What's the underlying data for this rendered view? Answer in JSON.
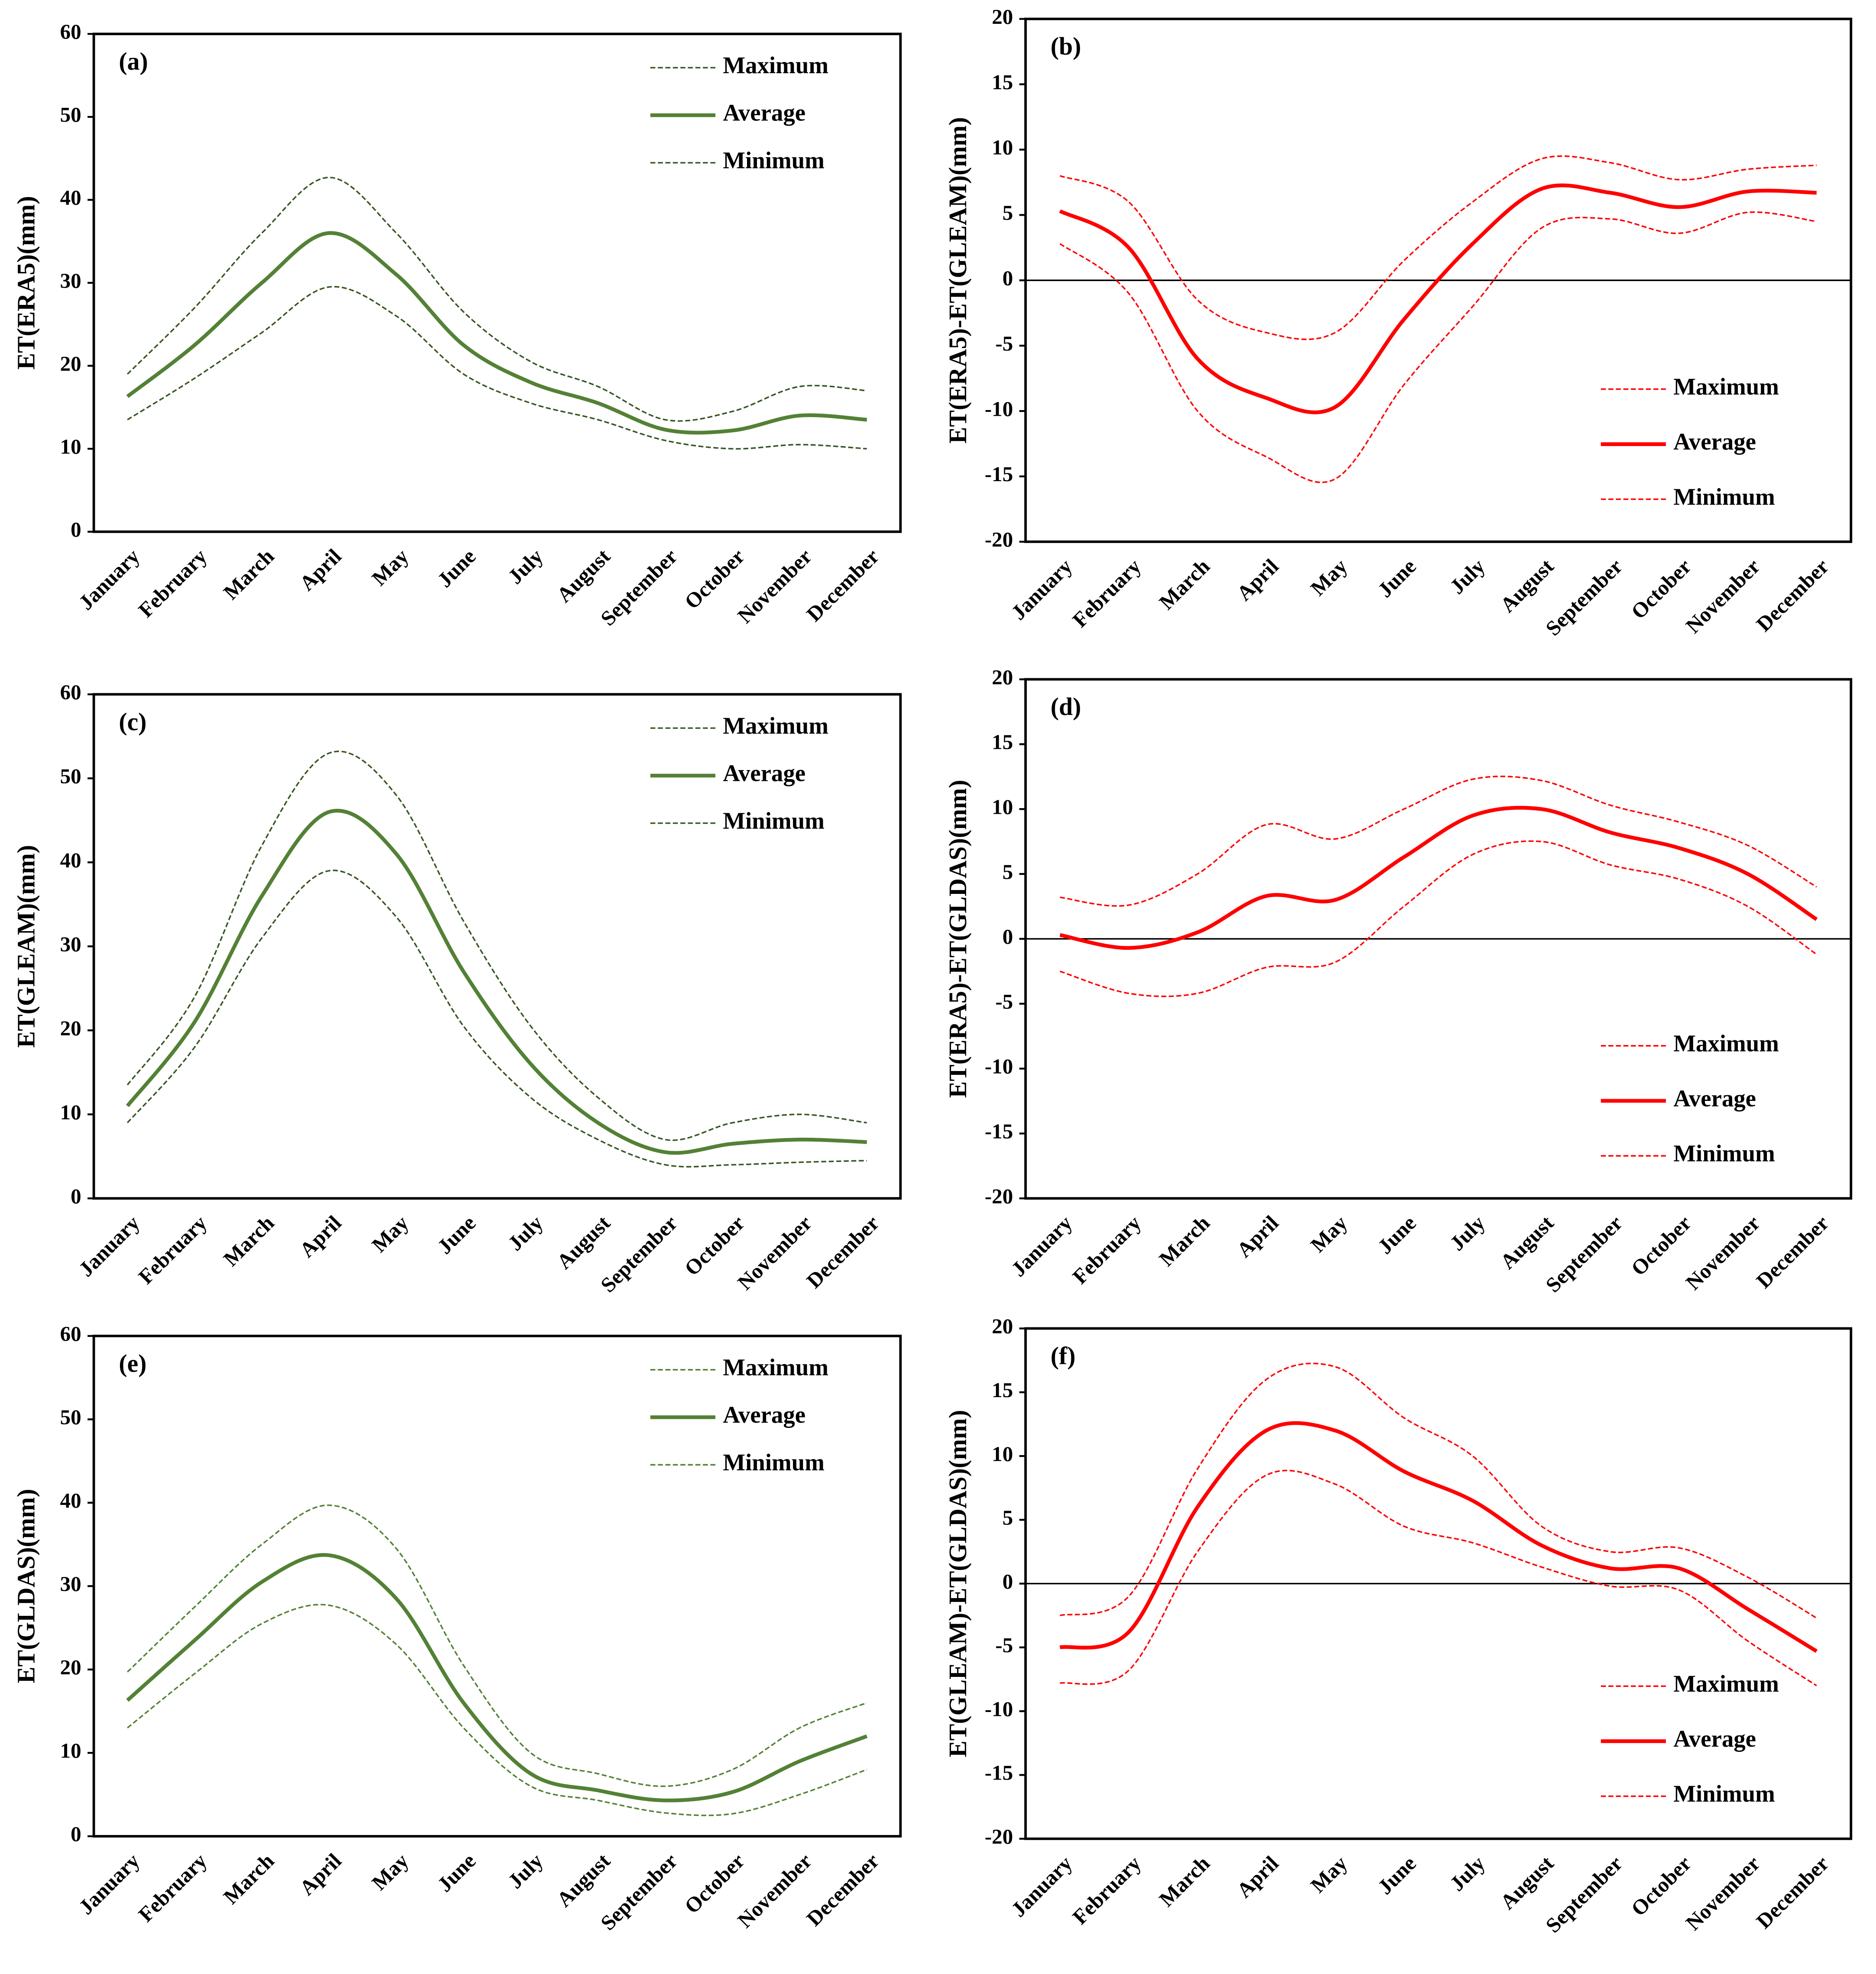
{
  "chart_data": [
    {
      "type": "line",
      "title": "(a)",
      "y_label": "ET(ERA5)(mm)",
      "legend": "upper right",
      "zero_line": false,
      "categories": [
        "January",
        "February",
        "March",
        "April",
        "May",
        "June",
        "July",
        "August",
        "September",
        "October",
        "November",
        "December"
      ],
      "ylim": [
        0,
        60
      ],
      "yticks": [
        0,
        10,
        20,
        30,
        40,
        50,
        60
      ],
      "series": [
        {
          "name": "Maximum",
          "color": "#375623",
          "style": "dashed",
          "values": [
            19,
            27,
            36,
            42.7,
            36,
            26.5,
            20.5,
            17.5,
            13.5,
            14.5,
            17.5,
            17
          ]
        },
        {
          "name": "Average",
          "color": "#538135",
          "style": "solid",
          "values": [
            16.3,
            22.5,
            30,
            36,
            31,
            22.5,
            18,
            15.5,
            12.3,
            12.2,
            14,
            13.5
          ]
        },
        {
          "name": "Minimum",
          "color": "#375623",
          "style": "dashed",
          "values": [
            13.5,
            18.5,
            24,
            29.5,
            26,
            19,
            15.5,
            13.5,
            11,
            10,
            10.5,
            10
          ]
        }
      ]
    },
    {
      "type": "line",
      "title": "(b)",
      "y_label": "ET(ERA5)-ET(GLEAM)(mm)",
      "legend": "lower right",
      "zero_line": true,
      "categories": [
        "January",
        "February",
        "March",
        "April",
        "May",
        "June",
        "July",
        "August",
        "September",
        "October",
        "November",
        "December"
      ],
      "ylim": [
        -20,
        20
      ],
      "yticks": [
        -20,
        -15,
        -10,
        -5,
        0,
        5,
        10,
        15,
        20
      ],
      "series": [
        {
          "name": "Maximum",
          "color": "#ff0000",
          "style": "dashed",
          "values": [
            8,
            6,
            -1.5,
            -4,
            -4,
            1.5,
            6,
            9.3,
            9,
            7.7,
            8.5,
            8.8
          ]
        },
        {
          "name": "Average",
          "color": "#ff0000",
          "style": "solid",
          "values": [
            5.3,
            2.5,
            -6,
            -9,
            -9.7,
            -3,
            2.8,
            7,
            6.7,
            5.6,
            6.8,
            6.7
          ]
        },
        {
          "name": "Minimum",
          "color": "#ff0000",
          "style": "dashed",
          "values": [
            2.8,
            -1,
            -10,
            -13.5,
            -15.2,
            -8,
            -2,
            4,
            4.7,
            3.6,
            5.2,
            4.5
          ]
        }
      ]
    },
    {
      "type": "line",
      "title": "(c)",
      "y_label": "ET(GLEAM)(mm)",
      "legend": "upper right",
      "zero_line": false,
      "categories": [
        "January",
        "February",
        "March",
        "April",
        "May",
        "June",
        "July",
        "August",
        "September",
        "October",
        "November",
        "December"
      ],
      "ylim": [
        0,
        60
      ],
      "yticks": [
        0,
        10,
        20,
        30,
        40,
        50,
        60
      ],
      "series": [
        {
          "name": "Maximum",
          "color": "#375623",
          "style": "dashed",
          "values": [
            13.5,
            24,
            42,
            53,
            48,
            33,
            20.5,
            12,
            7,
            9,
            10,
            9
          ]
        },
        {
          "name": "Average",
          "color": "#538135",
          "style": "solid",
          "values": [
            11,
            21,
            36,
            46,
            41,
            27,
            16,
            9,
            5.5,
            6.5,
            7,
            6.7
          ]
        },
        {
          "name": "Minimum",
          "color": "#375623",
          "style": "dashed",
          "values": [
            9,
            18,
            31,
            39,
            33.5,
            20.5,
            12,
            7,
            4,
            4,
            4.3,
            4.5
          ]
        }
      ]
    },
    {
      "type": "line",
      "title": "(d)",
      "y_label": "ET(ERA5)-ET(GLDAS)(mm)",
      "legend": "lower right",
      "zero_line": true,
      "categories": [
        "January",
        "February",
        "March",
        "April",
        "May",
        "June",
        "July",
        "August",
        "September",
        "October",
        "November",
        "December"
      ],
      "ylim": [
        -20,
        20
      ],
      "yticks": [
        -20,
        -15,
        -10,
        -5,
        0,
        5,
        10,
        15,
        20
      ],
      "series": [
        {
          "name": "Maximum",
          "color": "#ff0000",
          "style": "dashed",
          "values": [
            3.2,
            2.6,
            5,
            8.8,
            7.7,
            10,
            12.3,
            12.2,
            10.3,
            9,
            7.2,
            4
          ]
        },
        {
          "name": "Average",
          "color": "#ff0000",
          "style": "solid",
          "values": [
            0.3,
            -0.7,
            0.5,
            3.3,
            3,
            6.3,
            9.5,
            10,
            8.2,
            7,
            5,
            1.5
          ]
        },
        {
          "name": "Minimum",
          "color": "#ff0000",
          "style": "dashed",
          "values": [
            -2.5,
            -4.2,
            -4.2,
            -2.2,
            -1.8,
            2.5,
            6.5,
            7.5,
            5.7,
            4.6,
            2.5,
            -1.2
          ]
        }
      ]
    },
    {
      "type": "line",
      "title": "(e)",
      "y_label": "ET(GLDAS)(mm)",
      "legend": "upper right",
      "zero_line": false,
      "categories": [
        "January",
        "February",
        "March",
        "April",
        "May",
        "June",
        "July",
        "August",
        "September",
        "October",
        "November",
        "December"
      ],
      "ylim": [
        0,
        60
      ],
      "yticks": [
        0,
        10,
        20,
        30,
        40,
        50,
        60
      ],
      "series": [
        {
          "name": "Maximum",
          "color": "#538135",
          "style": "dashed",
          "values": [
            19.7,
            27.5,
            35,
            39.7,
            34.5,
            20.5,
            10,
            7.5,
            6,
            8,
            13,
            16
          ]
        },
        {
          "name": "Average",
          "color": "#538135",
          "style": "solid",
          "values": [
            16.3,
            23.5,
            30.5,
            33.7,
            28.5,
            16,
            7.5,
            5.5,
            4.3,
            5.3,
            9,
            12
          ]
        },
        {
          "name": "Minimum",
          "color": "#538135",
          "style": "dashed",
          "values": [
            13,
            19.5,
            25.5,
            27.7,
            23,
            13,
            6,
            4.3,
            2.8,
            2.7,
            5,
            8
          ]
        }
      ]
    },
    {
      "type": "line",
      "title": "(f)",
      "y_label": "ET(GLEAM)-ET(GLDAS)(mm)",
      "legend": "lower right",
      "zero_line": true,
      "categories": [
        "January",
        "February",
        "March",
        "April",
        "May",
        "June",
        "July",
        "August",
        "September",
        "October",
        "November",
        "December"
      ],
      "ylim": [
        -20,
        20
      ],
      "yticks": [
        -20,
        -15,
        -10,
        -5,
        0,
        5,
        10,
        15,
        20
      ],
      "series": [
        {
          "name": "Maximum",
          "color": "#ff0000",
          "style": "dashed",
          "values": [
            -2.5,
            -1,
            9,
            16,
            17,
            13,
            10,
            4.5,
            2.5,
            2.8,
            0.5,
            -2.7
          ]
        },
        {
          "name": "Average",
          "color": "#ff0000",
          "style": "solid",
          "values": [
            -5,
            -3.8,
            6,
            12,
            12,
            8.8,
            6.5,
            3,
            1.2,
            1.2,
            -2,
            -5.3
          ]
        },
        {
          "name": "Minimum",
          "color": "#ff0000",
          "style": "dashed",
          "values": [
            -7.8,
            -6.8,
            2.5,
            8.5,
            7.8,
            4.5,
            3.2,
            1.3,
            -0.2,
            -0.5,
            -4.5,
            -8
          ]
        }
      ]
    }
  ]
}
